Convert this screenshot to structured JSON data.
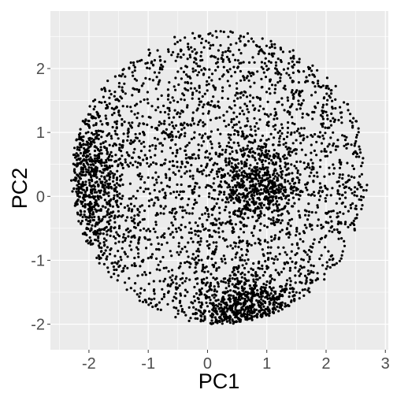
{
  "chart_data": {
    "type": "scatter",
    "title": "",
    "xlabel": "PC1",
    "ylabel": "PC2",
    "xlim": [
      -2.65,
      3.05
    ],
    "ylim": [
      -2.4,
      2.9
    ],
    "x_ticks": [
      -2,
      -1,
      0,
      1,
      2,
      3
    ],
    "y_ticks": [
      -2,
      -1,
      0,
      1,
      2
    ],
    "x_tick_labels": [
      "-2",
      "-1",
      "0",
      "1",
      "2",
      "3"
    ],
    "y_tick_labels": [
      "-2",
      "-1",
      "0",
      "1",
      "2"
    ],
    "grid": true,
    "legend": "none",
    "point_color": "#000000",
    "panel_background": "#ebebeb",
    "grid_color": "#ffffff",
    "points_note_free": true,
    "distribution": {
      "n_points": 4200,
      "outline_center": [
        0.2,
        0.3
      ],
      "outline_radius_x": 2.5,
      "outline_radius_y": 2.3,
      "dense_clusters": [
        {
          "x": -2.0,
          "y": 0.2
        },
        {
          "x": 0.9,
          "y": 0.15
        },
        {
          "x": 0.65,
          "y": -1.75
        }
      ]
    }
  }
}
